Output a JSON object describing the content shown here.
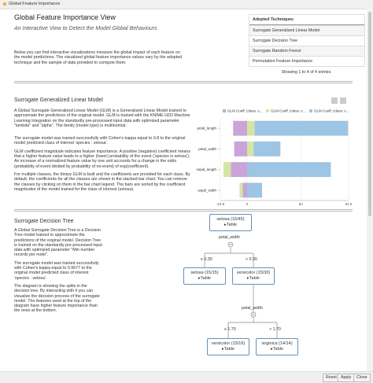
{
  "window_title": "Global Feature Importance",
  "header": {
    "title": "Global Feature Importance View",
    "subtitle": "An Interactive View to Detect the Model Global Behaviours",
    "intro": "Below you can find interactive visualizations measure the global impact of each feature on the model predictions. The visualized global feature importance values vary by the adopted technique and the sample of data provided to compute them."
  },
  "techniques": {
    "header": "Adopted Techniques",
    "rows": [
      "Surrogate Generalized Linear Model",
      "Surrogate Decision Tree",
      "Surrogate Random Forest",
      "Permutation Feature Importance"
    ],
    "info": "Showing 1 to 4 of 4 entries"
  },
  "glm": {
    "title": "Surrogate Generalized Linear Model",
    "paragraphs": [
      "A Global Surrogate Generalized Linear Model (GLM) is a Generalized Linear Model trained to approximate the predictions of the original model. GLM is trained with the KNIME H2O Machine Learning Integration on the standardly pre-processed input data with optimized parameter \"lambda\" and \"alpha\". The family (model type) is multinomial.",
      "The surrogate model was trained successfully with Cohen's kappa equal to 0.8 to the original model predicted class of interest 'species : setosa'.",
      "GLM coefficient magnitude indicates feature importance. A positive (negative) coefficient means that a higher feature value leads to a higher (lower) probability of the event ('species is setosa'). An increase of a normalized feature value by one unit accounts for a change in the odds (probability of event divided by probability of no-event) of exp(coefficient).",
      "For multiple classes, the binary GLM is built and the coefficients are provided for each class. By default, the coefficients for all the classes are shown in the stacked bar chart. You can remove the classes by clicking on them in the bar chart legend. The bars are sorted by the coefficient magnitudes of the model trained for the class of interest (setosa)."
    ],
    "chart_data": {
      "type": "bar",
      "orientation": "horizontal",
      "stacked": true,
      "categories": [
        "petal_length",
        "petal_width",
        "sepal_length",
        "sepal_width"
      ],
      "series": [
        {
          "name": "GLM Coeff. (class: s...",
          "color": "#c9a3d9",
          "values": [
            -13,
            -12,
            -15,
            -4
          ]
        },
        {
          "name": "GLM Coeff. (class: v...",
          "color": "#d4e6a5",
          "values": [
            7,
            6,
            -7,
            -3
          ]
        },
        {
          "name": "GLM Coeff. (class: v...",
          "color": "#9ec5e3",
          "values": [
            87,
            25,
            78,
            14
          ]
        }
      ],
      "xlim": [
        -24.9,
        94.5
      ],
      "xticks": [
        -24.9,
        0,
        50,
        94.5
      ],
      "grid": true
    }
  },
  "tree": {
    "title": "Surrogate Decision Tree",
    "paragraphs": [
      "A Global Surrogate Decision Tree is a Decision Tree model trained to approximate the predictions of the original model. Decision Tree is trained on the standardly pre-processed input data with optimized parameter \"Min number records per node\".",
      "The surrogate model was trained successfully with Cohen's kappa equal to 0.9677 to the original model predicted class of interest 'species : setosa'.",
      "The diagram is showing the splits in the decision tree. By interacting with it you can visualize the decision process of the surrogate model. The features used at the top of the diagram have higher feature importance than the ones at the bottom."
    ],
    "nodes": [
      {
        "label": "setosa (15/45)",
        "link": "Table"
      },
      {
        "label": "setosa (15/15)",
        "link": "Table"
      },
      {
        "label": "versicolor (15/30)",
        "link": "Table"
      },
      {
        "label": "versicolor (15/16)",
        "link": "Table"
      },
      {
        "label": "virginica (14/14)",
        "link": "Table"
      }
    ],
    "splits": [
      {
        "feature": "petal_width",
        "left": "≤ 0.30",
        "right": "> 0.30"
      },
      {
        "feature": "petal_width",
        "left": "≤ 1.70",
        "right": "> 1.70"
      }
    ]
  },
  "buttons": [
    "Reset",
    "Apply",
    "Close"
  ]
}
